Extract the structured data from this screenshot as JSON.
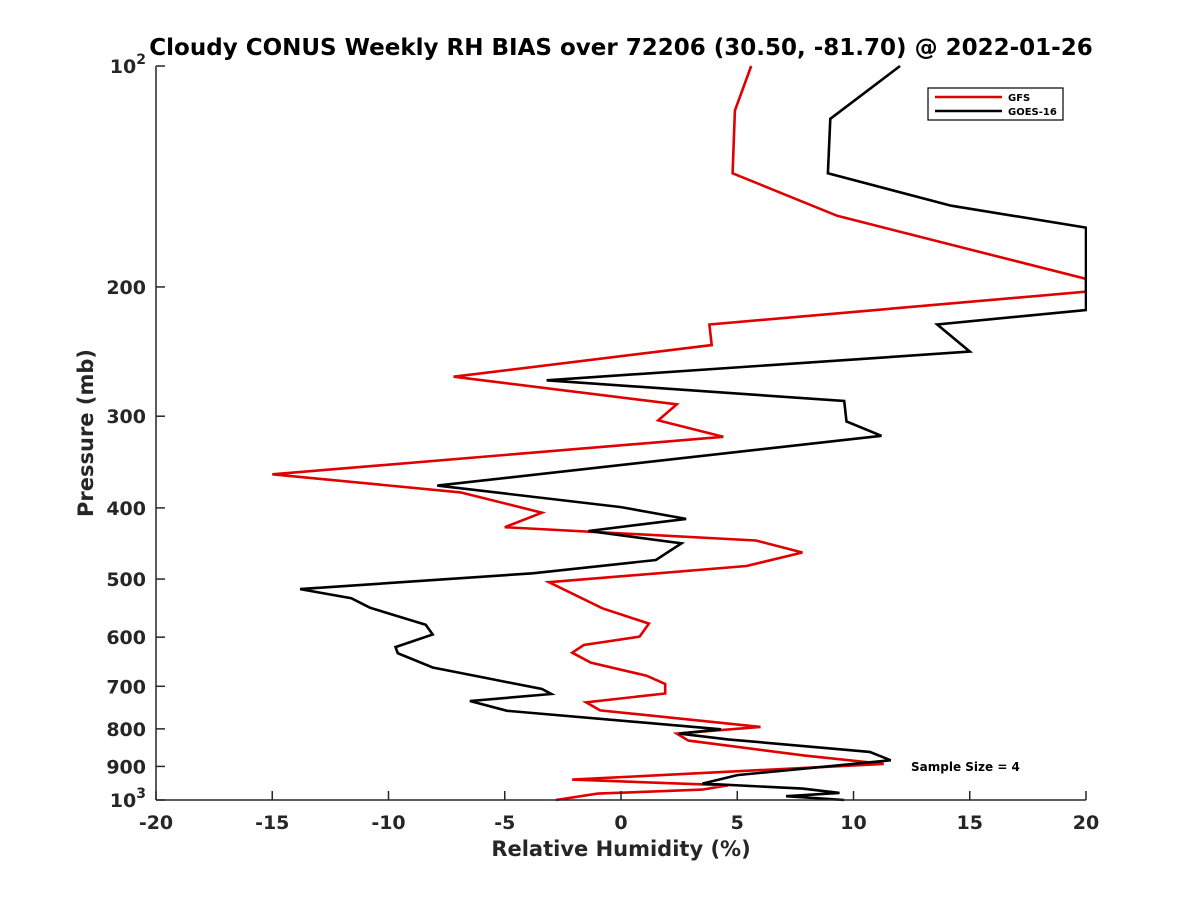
{
  "chart_data": {
    "type": "line",
    "title": "Cloudy CONUS Weekly RH BIAS over 72206 (30.50, -81.70) @ 2022-01-26",
    "xlabel": "Relative Humidity (%)",
    "ylabel": "Pressure (mb)",
    "xlim": [
      -20,
      20
    ],
    "ylim": [
      100,
      1000
    ],
    "yscale": "log",
    "y_reversed": true,
    "xticks": [
      -20,
      -15,
      -10,
      -5,
      0,
      5,
      10,
      15,
      20
    ],
    "xtick_labels": [
      "-20",
      "-15",
      "-10",
      "-5",
      "0",
      "5",
      "10",
      "15",
      "20"
    ],
    "yticks": [
      100,
      200,
      300,
      400,
      500,
      600,
      700,
      800,
      900,
      1000
    ],
    "ytick_labels": [
      {
        "base": "10",
        "exp": "2"
      },
      {
        "base": "200",
        "exp": ""
      },
      {
        "base": "300",
        "exp": ""
      },
      {
        "base": "400",
        "exp": ""
      },
      {
        "base": "500",
        "exp": ""
      },
      {
        "base": "600",
        "exp": ""
      },
      {
        "base": "700",
        "exp": ""
      },
      {
        "base": "800",
        "exp": ""
      },
      {
        "base": "900",
        "exp": ""
      },
      {
        "base": "10",
        "exp": "3"
      }
    ],
    "grid": false,
    "legend_position": "top-right",
    "annotation": "Sample Size = 4",
    "series": [
      {
        "name": "GFS",
        "color": "#e00000",
        "points": [
          [
            5.6,
            100
          ],
          [
            4.9,
            115
          ],
          [
            4.8,
            140
          ],
          [
            9.3,
            160
          ],
          [
            20,
            195
          ],
          [
            20,
            203
          ],
          [
            3.8,
            225
          ],
          [
            3.9,
            240
          ],
          [
            -7.2,
            265
          ],
          [
            2.4,
            289
          ],
          [
            1.6,
            304
          ],
          [
            4.4,
            320
          ],
          [
            -15,
            360
          ],
          [
            -6.9,
            381
          ],
          [
            -3.4,
            406
          ],
          [
            -5,
            425
          ],
          [
            5.8,
            443
          ],
          [
            7.8,
            460
          ],
          [
            5.4,
            480
          ],
          [
            -3.1,
            505
          ],
          [
            -0.8,
            548
          ],
          [
            1.2,
            575
          ],
          [
            0.8,
            599
          ],
          [
            -1.6,
            615
          ],
          [
            -2.1,
            630
          ],
          [
            -1.3,
            650
          ],
          [
            1.1,
            677
          ],
          [
            1.9,
            695
          ],
          [
            1.9,
            716
          ],
          [
            -1.5,
            736
          ],
          [
            -0.9,
            755
          ],
          [
            6,
            795
          ],
          [
            2.4,
            812
          ],
          [
            2.9,
            830
          ],
          [
            7.9,
            870
          ],
          [
            11.3,
            893
          ],
          [
            -2.1,
            938
          ],
          [
            4.6,
            955
          ],
          [
            3.5,
            968
          ],
          [
            -1,
            980
          ],
          [
            -2.8,
            1000
          ]
        ]
      },
      {
        "name": "GOES-16",
        "color": "#000000",
        "points": [
          [
            12,
            100
          ],
          [
            9,
            118
          ],
          [
            8.9,
            140
          ],
          [
            14.2,
            155
          ],
          [
            20,
            166
          ],
          [
            20,
            215
          ],
          [
            13.6,
            225
          ],
          [
            15,
            245
          ],
          [
            -3.2,
            268
          ],
          [
            9.6,
            286
          ],
          [
            9.7,
            305
          ],
          [
            11.2,
            319
          ],
          [
            -7.9,
            373
          ],
          [
            0,
            399
          ],
          [
            2.8,
            414
          ],
          [
            -1.4,
            430
          ],
          [
            2.6,
            447
          ],
          [
            1.5,
            471
          ],
          [
            -3.8,
            491
          ],
          [
            -13.8,
            516
          ],
          [
            -11.6,
            531
          ],
          [
            -10.8,
            547
          ],
          [
            -8.4,
            577
          ],
          [
            -8.1,
            595
          ],
          [
            -9.7,
            619
          ],
          [
            -9.6,
            631
          ],
          [
            -8.1,
            660
          ],
          [
            -5.5,
            685
          ],
          [
            -3.4,
            706
          ],
          [
            -3,
            717
          ],
          [
            -6.5,
            733
          ],
          [
            -4.9,
            756
          ],
          [
            4.3,
            801
          ],
          [
            2.5,
            812
          ],
          [
            4.6,
            827
          ],
          [
            10.7,
            860
          ],
          [
            11.6,
            883
          ],
          [
            5,
            925
          ],
          [
            3.5,
            950
          ],
          [
            7.8,
            965
          ],
          [
            9.4,
            978
          ],
          [
            7.1,
            988
          ],
          [
            9.6,
            1000
          ]
        ]
      }
    ]
  }
}
